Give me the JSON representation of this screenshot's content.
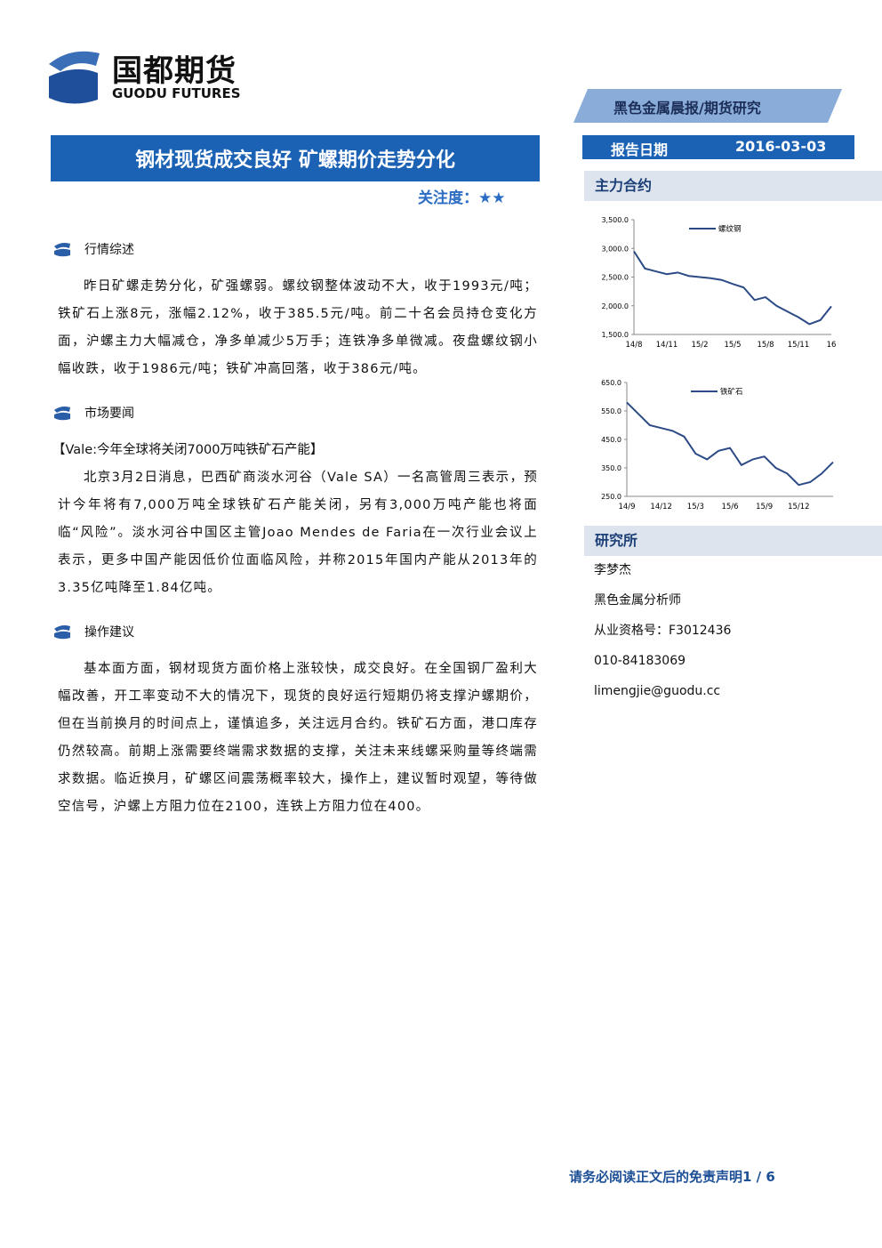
{
  "header": {
    "logo_cn": "国都期货",
    "logo_en": "GUODU FUTURES",
    "category": "黑色金属晨报/期货研究",
    "title": "钢材现货成交良好 矿螺期价走势分化",
    "attention": "关注度：★★",
    "report_date_label": "报告日期",
    "report_date": "2016-03-03"
  },
  "sections": [
    {
      "heading": "行情综述",
      "paragraphs": [
        "昨日矿螺走势分化，矿强螺弱。螺纹钢整体波动不大，收于1993元/吨；铁矿石上涨8元，涨幅2.12%，收于385.5元/吨。前二十名会员持仓变化方面，沪螺主力大幅减仓，净多单减少5万手；连铁净多单微减。夜盘螺纹钢小幅收跌，收于1986元/吨；铁矿冲高回落，收于386元/吨。"
      ]
    },
    {
      "heading": "市场要闻",
      "subheading": "【Vale:今年全球将关闭7000万吨铁矿石产能】",
      "paragraphs": [
        "北京3月2日消息，巴西矿商淡水河谷（Vale SA）一名高管周三表示，预计今年将有7,000万吨全球铁矿石产能关闭，另有3,000万吨产能也将面临“风险”。淡水河谷中国区主管Joao Mendes de Faria在一次行业会议上表示，更多中国产能因低价位面临风险，并称2015年国内产能从2013年的3.35亿吨降至1.84亿吨。"
      ]
    },
    {
      "heading": "操作建议",
      "paragraphs": [
        "基本面方面，钢材现货方面价格上涨较快，成交良好。在全国钢厂盈利大幅改善，开工率变动不大的情况下，现货的良好运行短期仍将支撑沪螺期价，但在当前换月的时间点上，谨慎追多，关注远月合约。铁矿石方面，港口库存仍然较高。前期上涨需要终端需求数据的支撑，关注未来线螺采购量等终端需求数据。临近换月，矿螺区间震荡概率较大，操作上，建议暂时观望，等待做空信号，沪螺上方阻力位在2100，连铁上方阻力位在400。"
      ]
    }
  ],
  "sidebar": {
    "main_contract": "主力合约",
    "research": "研究所",
    "research_lines": [
      "李梦杰",
      "黑色金属分析师",
      "从业资格号：F3012436",
      "010-84183069",
      "limengjie@guodu.cc"
    ]
  },
  "chart_data": [
    {
      "type": "line",
      "categories": [
        "14/8",
        null,
        null,
        "14/11",
        null,
        null,
        "15/2",
        null,
        null,
        "15/5",
        null,
        null,
        "15/8",
        null,
        null,
        "15/11",
        null,
        null,
        "16"
      ],
      "series": [
        {
          "name": "螺纹钢",
          "color": "#2b4a86",
          "values": [
            2950,
            2650,
            2600,
            2550,
            2580,
            2520,
            2500,
            2480,
            2450,
            2380,
            2320,
            2100,
            2150,
            2000,
            1900,
            1800,
            1680,
            1750,
            1990
          ]
        }
      ],
      "ylim": [
        1500,
        3500
      ],
      "yticks": [
        {
          "value": 1500,
          "label": "1,500.0"
        },
        {
          "value": 2000,
          "label": "2,000.0"
        },
        {
          "value": 2500,
          "label": "2,500.0"
        },
        {
          "value": 3000,
          "label": "3,000.0"
        },
        {
          "value": 3500,
          "label": "3,500.0"
        }
      ]
    },
    {
      "type": "line",
      "categories": [
        "14/9",
        null,
        null,
        "14/12",
        null,
        null,
        "15/3",
        null,
        null,
        "15/6",
        null,
        null,
        "15/9",
        null,
        null,
        "15/12",
        null,
        null,
        null
      ],
      "series": [
        {
          "name": "铁矿石",
          "color": "#2b4a86",
          "values": [
            580,
            540,
            500,
            490,
            480,
            460,
            400,
            380,
            410,
            420,
            360,
            380,
            390,
            350,
            330,
            290,
            300,
            330,
            370
          ]
        }
      ],
      "ylim": [
        250,
        650
      ],
      "yticks": [
        {
          "value": 250,
          "label": "250.0"
        },
        {
          "value": 350,
          "label": "350.0"
        },
        {
          "value": 450,
          "label": "450.0"
        },
        {
          "value": 550,
          "label": "550.0"
        },
        {
          "value": 650,
          "label": "650.0"
        }
      ]
    }
  ],
  "footer": "请务必阅读正文后的免责声明1 / 6"
}
